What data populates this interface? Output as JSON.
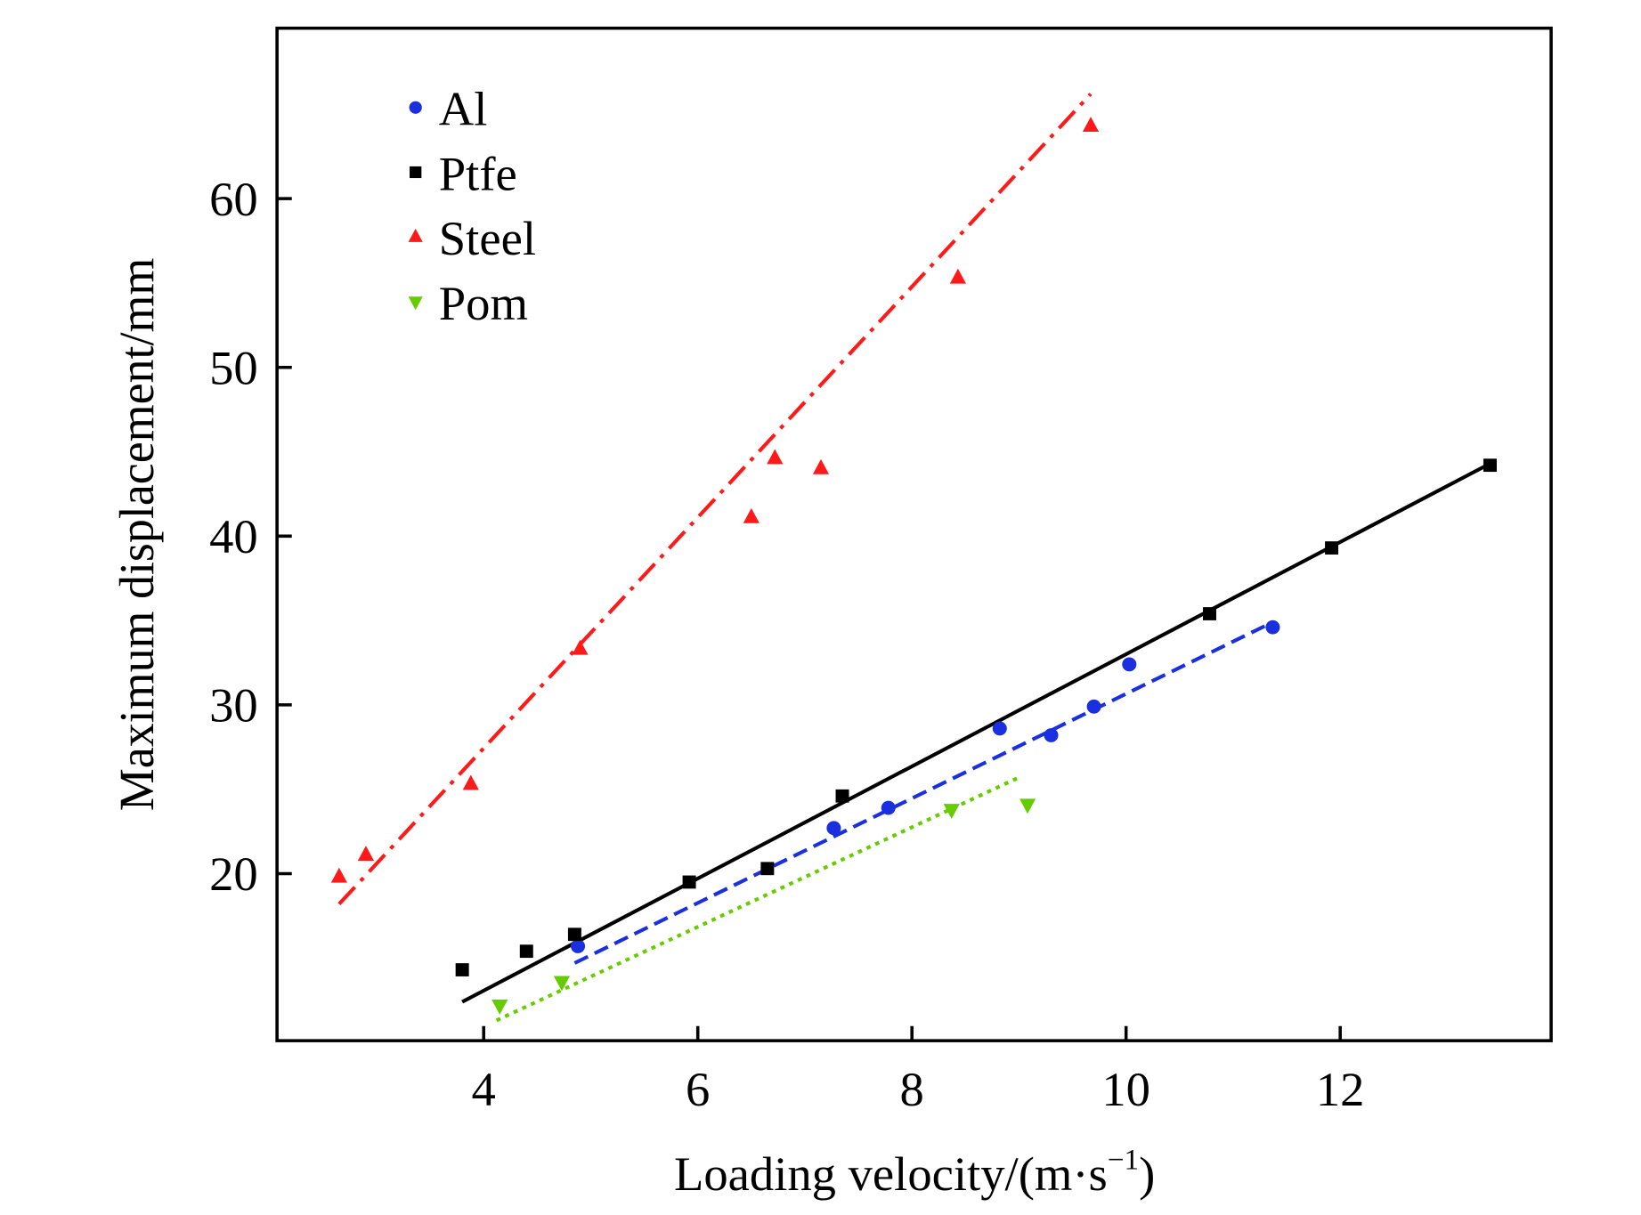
{
  "chart_data": {
    "type": "scatter",
    "title": "",
    "xlabel": "Loading velocity/(m·s",
    "xlabel_sup": "−1",
    "xlabel_end": ")",
    "ylabel": "Maximum displacement/mm",
    "xlim": [
      2.07,
      13.97
    ],
    "ylim": [
      10.1,
      70.1
    ],
    "xticks": [
      4,
      6,
      8,
      10,
      12
    ],
    "yticks": [
      20,
      30,
      40,
      50,
      60
    ],
    "grid": false,
    "legend_position": "top-left",
    "series": [
      {
        "name": "Al",
        "marker": "circle",
        "color": "#1a2fe0",
        "line_style": "dashed",
        "x": [
          4.88,
          7.27,
          7.78,
          8.82,
          9.3,
          9.7,
          10.03,
          11.37
        ],
        "y": [
          15.7,
          22.7,
          23.9,
          28.6,
          28.2,
          29.9,
          32.4,
          34.6
        ],
        "fit": {
          "x": [
            4.85,
            11.37
          ],
          "y": [
            14.7,
            34.9
          ]
        }
      },
      {
        "name": "Ptfe",
        "marker": "square",
        "color": "#000000",
        "line_style": "solid",
        "x": [
          3.8,
          4.4,
          4.85,
          5.92,
          6.65,
          7.35,
          10.78,
          11.92,
          13.4
        ],
        "y": [
          14.3,
          15.4,
          16.4,
          19.5,
          20.3,
          24.6,
          35.4,
          39.3,
          44.2
        ],
        "fit": {
          "x": [
            3.8,
            13.4
          ],
          "y": [
            12.4,
            44.3
          ]
        }
      },
      {
        "name": "Steel",
        "marker": "triangle-up",
        "color": "#ff1a1a",
        "line_style": "dashdot",
        "x": [
          2.65,
          2.9,
          3.88,
          4.9,
          6.5,
          6.72,
          7.15,
          8.43,
          9.67
        ],
        "y": [
          19.8,
          21.1,
          25.3,
          33.3,
          41.1,
          44.6,
          44.0,
          55.3,
          64.3
        ],
        "fit": {
          "x": [
            2.65,
            9.67
          ],
          "y": [
            18.2,
            66.2
          ]
        }
      },
      {
        "name": "Pom",
        "marker": "triangle-down",
        "color": "#66cc00",
        "line_style": "dotted",
        "x": [
          4.15,
          4.73,
          8.37,
          9.08
        ],
        "y": [
          12.2,
          13.6,
          23.8,
          24.1
        ],
        "fit": {
          "x": [
            4.12,
            9.0
          ],
          "y": [
            11.3,
            25.7
          ]
        }
      }
    ]
  }
}
